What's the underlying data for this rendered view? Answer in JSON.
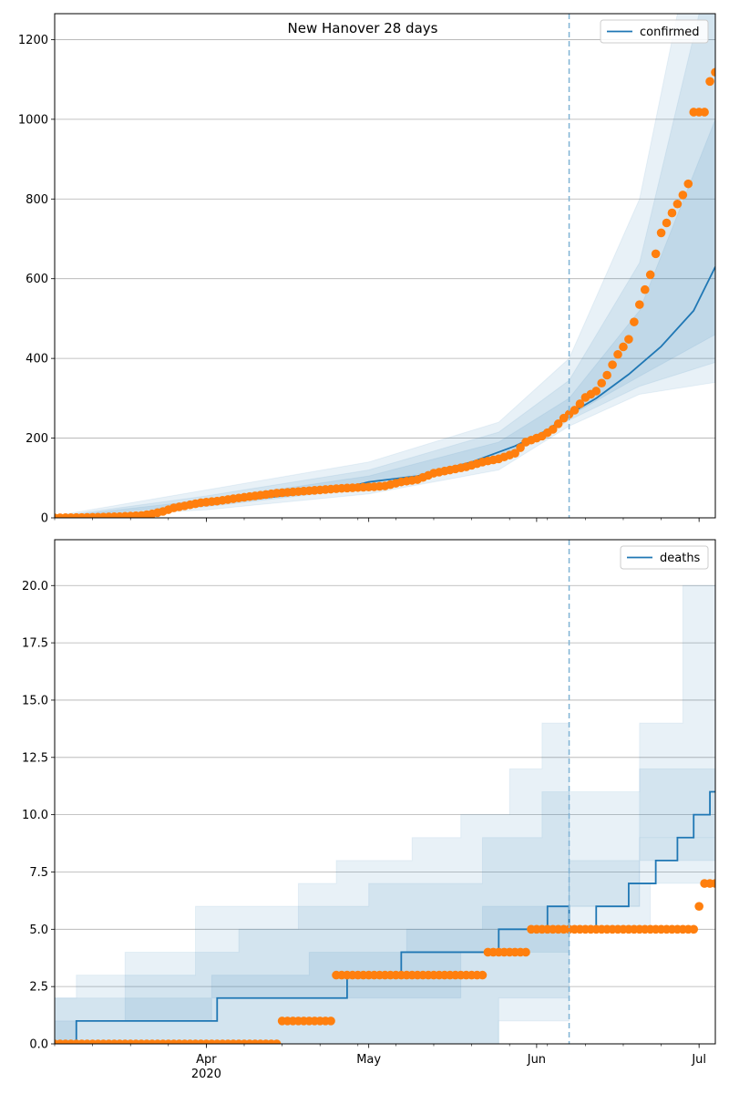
{
  "figure": {
    "title": "New Hanover 28 days",
    "x_tick_labels": [
      {
        "date": "2020-04-01",
        "label": "Apr",
        "sublabel": "2020"
      },
      {
        "date": "2020-05-01",
        "label": "May",
        "sublabel": ""
      },
      {
        "date": "2020-06-01",
        "label": "Jun",
        "sublabel": ""
      },
      {
        "date": "2020-07-01",
        "label": "Jul",
        "sublabel": ""
      }
    ],
    "xlim": [
      "2020-03-04",
      "2020-07-04"
    ],
    "forecast_date": "2020-06-07",
    "colors": {
      "model": "#1f77b4",
      "observed": "#ff7f0e",
      "band": "#1f77b4",
      "grid": "#b0b0b0",
      "divider": "#7fb3d5"
    }
  },
  "chart_data": [
    {
      "type": "line",
      "legend": "confirmed",
      "legend_position": "top-right",
      "ylim": [
        0,
        1265
      ],
      "yticks": [
        0,
        200,
        400,
        600,
        800,
        1000,
        1200
      ],
      "ytick_labels": [
        "0",
        "200",
        "400",
        "600",
        "800",
        "1000",
        "1200"
      ],
      "grid": "y",
      "median": [
        [
          "2020-03-04",
          0
        ],
        [
          "2020-03-15",
          5
        ],
        [
          "2020-03-25",
          20
        ],
        [
          "2020-04-05",
          40
        ],
        [
          "2020-04-15",
          55
        ],
        [
          "2020-04-25",
          70
        ],
        [
          "2020-05-01",
          90
        ],
        [
          "2020-05-10",
          105
        ],
        [
          "2020-05-20",
          140
        ],
        [
          "2020-05-28",
          180
        ],
        [
          "2020-06-03",
          220
        ],
        [
          "2020-06-07",
          260
        ],
        [
          "2020-06-12",
          300
        ],
        [
          "2020-06-18",
          360
        ],
        [
          "2020-06-24",
          430
        ],
        [
          "2020-06-30",
          520
        ],
        [
          "2020-07-04",
          630
        ]
      ],
      "bands": [
        {
          "lower": [
            [
              "2020-03-04",
              0
            ],
            [
              "2020-04-01",
              20
            ],
            [
              "2020-05-01",
              60
            ],
            [
              "2020-05-25",
              120
            ],
            [
              "2020-06-07",
              230
            ],
            [
              "2020-06-20",
              310
            ],
            [
              "2020-07-04",
              340
            ]
          ],
          "upper": [
            [
              "2020-03-04",
              5
            ],
            [
              "2020-04-01",
              70
            ],
            [
              "2020-05-01",
              140
            ],
            [
              "2020-05-25",
              240
            ],
            [
              "2020-06-07",
              400
            ],
            [
              "2020-06-20",
              800
            ],
            [
              "2020-06-27",
              1265
            ],
            [
              "2020-07-04",
              1265
            ]
          ]
        },
        {
          "lower": [
            [
              "2020-03-04",
              0
            ],
            [
              "2020-04-01",
              28
            ],
            [
              "2020-05-01",
              75
            ],
            [
              "2020-05-25",
              140
            ],
            [
              "2020-06-07",
              245
            ],
            [
              "2020-06-20",
              330
            ],
            [
              "2020-07-04",
              390
            ]
          ],
          "upper": [
            [
              "2020-03-04",
              3
            ],
            [
              "2020-04-01",
              55
            ],
            [
              "2020-05-01",
              120
            ],
            [
              "2020-05-25",
              215
            ],
            [
              "2020-06-07",
              345
            ],
            [
              "2020-06-20",
              640
            ],
            [
              "2020-07-01",
              1265
            ],
            [
              "2020-07-04",
              1265
            ]
          ]
        },
        {
          "lower": [
            [
              "2020-03-04",
              0
            ],
            [
              "2020-04-01",
              35
            ],
            [
              "2020-05-01",
              85
            ],
            [
              "2020-05-25",
              150
            ],
            [
              "2020-06-07",
              255
            ],
            [
              "2020-06-20",
              355
            ],
            [
              "2020-07-04",
              460
            ]
          ],
          "upper": [
            [
              "2020-03-04",
              2
            ],
            [
              "2020-04-01",
              45
            ],
            [
              "2020-05-01",
              105
            ],
            [
              "2020-05-25",
              190
            ],
            [
              "2020-06-07",
              300
            ],
            [
              "2020-06-20",
              520
            ],
            [
              "2020-07-04",
              1000
            ]
          ]
        }
      ],
      "observed": [
        [
          "2020-03-04",
          0
        ],
        [
          "2020-03-10",
          1
        ],
        [
          "2020-03-16",
          3
        ],
        [
          "2020-03-20",
          6
        ],
        [
          "2020-03-22",
          10
        ],
        [
          "2020-03-24",
          16
        ],
        [
          "2020-03-26",
          25
        ],
        [
          "2020-03-28",
          30
        ],
        [
          "2020-03-31",
          38
        ],
        [
          "2020-04-03",
          42
        ],
        [
          "2020-04-06",
          48
        ],
        [
          "2020-04-10",
          55
        ],
        [
          "2020-04-14",
          62
        ],
        [
          "2020-04-18",
          66
        ],
        [
          "2020-04-22",
          70
        ],
        [
          "2020-04-26",
          74
        ],
        [
          "2020-04-29",
          76
        ],
        [
          "2020-05-02",
          78
        ],
        [
          "2020-05-04",
          80
        ],
        [
          "2020-05-07",
          90
        ],
        [
          "2020-05-10",
          96
        ],
        [
          "2020-05-13",
          112
        ],
        [
          "2020-05-16",
          120
        ],
        [
          "2020-05-19",
          128
        ],
        [
          "2020-05-22",
          140
        ],
        [
          "2020-05-25",
          148
        ],
        [
          "2020-05-28",
          162
        ],
        [
          "2020-05-30",
          190
        ],
        [
          "2020-06-02",
          205
        ],
        [
          "2020-06-04",
          222
        ],
        [
          "2020-06-06",
          250
        ],
        [
          "2020-06-08",
          270
        ],
        [
          "2020-06-10",
          302
        ],
        [
          "2020-06-12",
          318
        ],
        [
          "2020-06-14",
          358
        ],
        [
          "2020-06-16",
          410
        ],
        [
          "2020-06-18",
          448
        ],
        [
          "2020-06-20",
          535
        ],
        [
          "2020-06-22",
          610
        ],
        [
          "2020-06-24",
          715
        ],
        [
          "2020-06-26",
          765
        ],
        [
          "2020-06-28",
          810
        ],
        [
          "2020-06-29",
          838
        ],
        [
          "2020-06-30",
          1018
        ],
        [
          "2020-07-02",
          1018
        ],
        [
          "2020-07-03",
          1095
        ],
        [
          "2020-07-04",
          1118
        ]
      ]
    },
    {
      "type": "line",
      "legend": "deaths",
      "legend_position": "top-right",
      "ylim": [
        0,
        22
      ],
      "yticks": [
        0,
        2.5,
        5,
        7.5,
        10,
        12.5,
        15,
        17.5,
        20
      ],
      "ytick_labels": [
        "0.0",
        "2.5",
        "5.0",
        "7.5",
        "10.0",
        "12.5",
        "15.0",
        "17.5",
        "20.0"
      ],
      "grid": "y",
      "median": [
        [
          "2020-03-04",
          0
        ],
        [
          "2020-03-08",
          1
        ],
        [
          "2020-04-03",
          2
        ],
        [
          "2020-04-27",
          3
        ],
        [
          "2020-05-07",
          4
        ],
        [
          "2020-05-25",
          5
        ],
        [
          "2020-06-03",
          6
        ],
        [
          "2020-06-07",
          5
        ],
        [
          "2020-06-12",
          6
        ],
        [
          "2020-06-18",
          7
        ],
        [
          "2020-06-23",
          8
        ],
        [
          "2020-06-27",
          9
        ],
        [
          "2020-06-30",
          10
        ],
        [
          "2020-07-03",
          11
        ],
        [
          "2020-07-04",
          11
        ]
      ],
      "bands": [
        {
          "lower": [
            [
              "2020-03-04",
              0
            ],
            [
              "2020-05-25",
              0
            ],
            [
              "2020-05-27",
              1
            ],
            [
              "2020-06-07",
              1
            ]
          ],
          "upper": [
            [
              "2020-03-04",
              2
            ],
            [
              "2020-03-08",
              3
            ],
            [
              "2020-03-30",
              6
            ],
            [
              "2020-04-18",
              7
            ],
            [
              "2020-04-25",
              8
            ],
            [
              "2020-05-09",
              9
            ],
            [
              "2020-05-18",
              10
            ],
            [
              "2020-05-27",
              12
            ],
            [
              "2020-06-02",
              14
            ],
            [
              "2020-06-07",
              14
            ]
          ]
        },
        {
          "lower": [
            [
              "2020-03-04",
              0
            ],
            [
              "2020-05-25",
              0
            ],
            [
              "2020-05-27",
              2
            ],
            [
              "2020-06-07",
              2
            ]
          ],
          "upper": [
            [
              "2020-03-04",
              1
            ],
            [
              "2020-03-17",
              4
            ],
            [
              "2020-04-07",
              5
            ],
            [
              "2020-04-18",
              6
            ],
            [
              "2020-05-01",
              7
            ],
            [
              "2020-05-22",
              9
            ],
            [
              "2020-06-02",
              11
            ],
            [
              "2020-06-07",
              11
            ]
          ]
        },
        {
          "lower": [
            [
              "2020-03-04",
              0
            ],
            [
              "2020-05-18",
              2
            ],
            [
              "2020-06-07",
              4
            ]
          ],
          "upper": [
            [
              "2020-03-04",
              0
            ],
            [
              "2020-03-08",
              1
            ],
            [
              "2020-04-02",
              3
            ],
            [
              "2020-04-20",
              4
            ],
            [
              "2020-05-08",
              5
            ],
            [
              "2020-05-22",
              6
            ],
            [
              "2020-06-07",
              7
            ]
          ]
        },
        {
          "lower": [
            [
              "2020-06-07",
              5
            ],
            [
              "2020-06-22",
              5
            ],
            [
              "2020-07-04",
              7
            ]
          ],
          "upper": [
            [
              "2020-06-07",
              11
            ],
            [
              "2020-06-20",
              14
            ],
            [
              "2020-06-28",
              20
            ],
            [
              "2020-07-04",
              22
            ]
          ]
        },
        {
          "lower": [
            [
              "2020-06-07",
              5
            ],
            [
              "2020-06-20",
              6
            ],
            [
              "2020-07-04",
              8
            ]
          ],
          "upper": [
            [
              "2020-06-07",
              8
            ],
            [
              "2020-06-20",
              12
            ],
            [
              "2020-07-04",
              21
            ]
          ]
        },
        {
          "lower": [
            [
              "2020-06-07",
              5
            ],
            [
              "2020-06-20",
              6
            ],
            [
              "2020-07-04",
              9
            ]
          ],
          "upper": [
            [
              "2020-06-07",
              6
            ],
            [
              "2020-06-20",
              9
            ],
            [
              "2020-07-04",
              14
            ]
          ]
        }
      ],
      "observed_runs": [
        {
          "from": "2020-03-04",
          "to": "2020-04-14",
          "value": 0
        },
        {
          "from": "2020-04-15",
          "to": "2020-04-24",
          "value": 1
        },
        {
          "from": "2020-04-25",
          "to": "2020-05-22",
          "value": 3
        },
        {
          "from": "2020-05-23",
          "to": "2020-05-30",
          "value": 4
        },
        {
          "from": "2020-05-31",
          "to": "2020-06-30",
          "value": 5
        },
        {
          "from": "2020-07-01",
          "to": "2020-07-01",
          "value": 6
        },
        {
          "from": "2020-07-02",
          "to": "2020-07-04",
          "value": 7
        }
      ]
    }
  ]
}
